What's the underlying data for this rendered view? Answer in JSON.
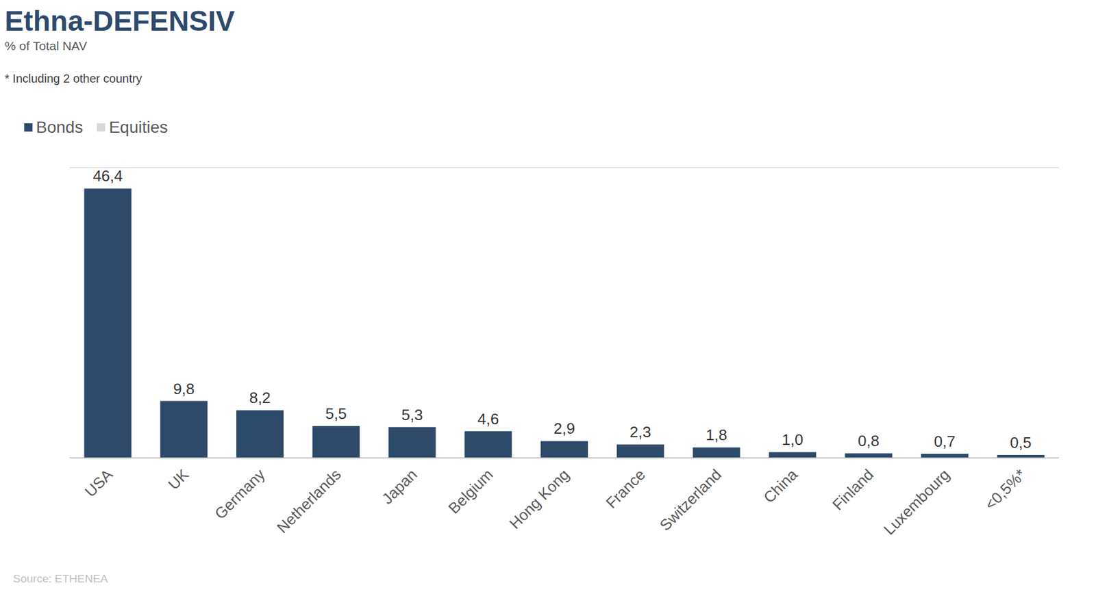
{
  "chart_data": {
    "type": "bar",
    "title": "Ethna-DEFENSIV",
    "subtitle": "% of Total NAV",
    "annotations": [
      "* Including 2 other country"
    ],
    "source": "Source: ETHENEA",
    "categories": [
      "USA",
      "UK",
      "Germany",
      "Netherlands",
      "Japan",
      "Belgium",
      "Hong Kong",
      "France",
      "Switzerland",
      "China",
      "Finland",
      "Luxembourg",
      "<0,5%*"
    ],
    "series": [
      {
        "name": "Bonds",
        "color": "#2e4a6b",
        "values": [
          46.4,
          9.8,
          8.2,
          5.5,
          5.3,
          4.6,
          2.9,
          2.3,
          1.8,
          1.0,
          0.8,
          0.7,
          0.5
        ],
        "value_labels": [
          "46,4",
          "9,8",
          "8,2",
          "5,5",
          "5,3",
          "4,6",
          "2,9",
          "2,3",
          "1,8",
          "1,0",
          "0,8",
          "0,7",
          "0,5"
        ]
      },
      {
        "name": "Equities",
        "color": "#d9d9d9",
        "values": [
          0,
          0,
          0,
          0,
          0,
          0,
          0,
          0,
          0,
          0,
          0,
          0,
          0
        ]
      }
    ],
    "ylim": [
      0,
      50
    ],
    "yticks": [
      0,
      5,
      10,
      15,
      20,
      25,
      30,
      35,
      40,
      45,
      50
    ],
    "grid": true,
    "stacked": true,
    "data_labels": true,
    "legend": "top left",
    "tick_labels": "x"
  }
}
